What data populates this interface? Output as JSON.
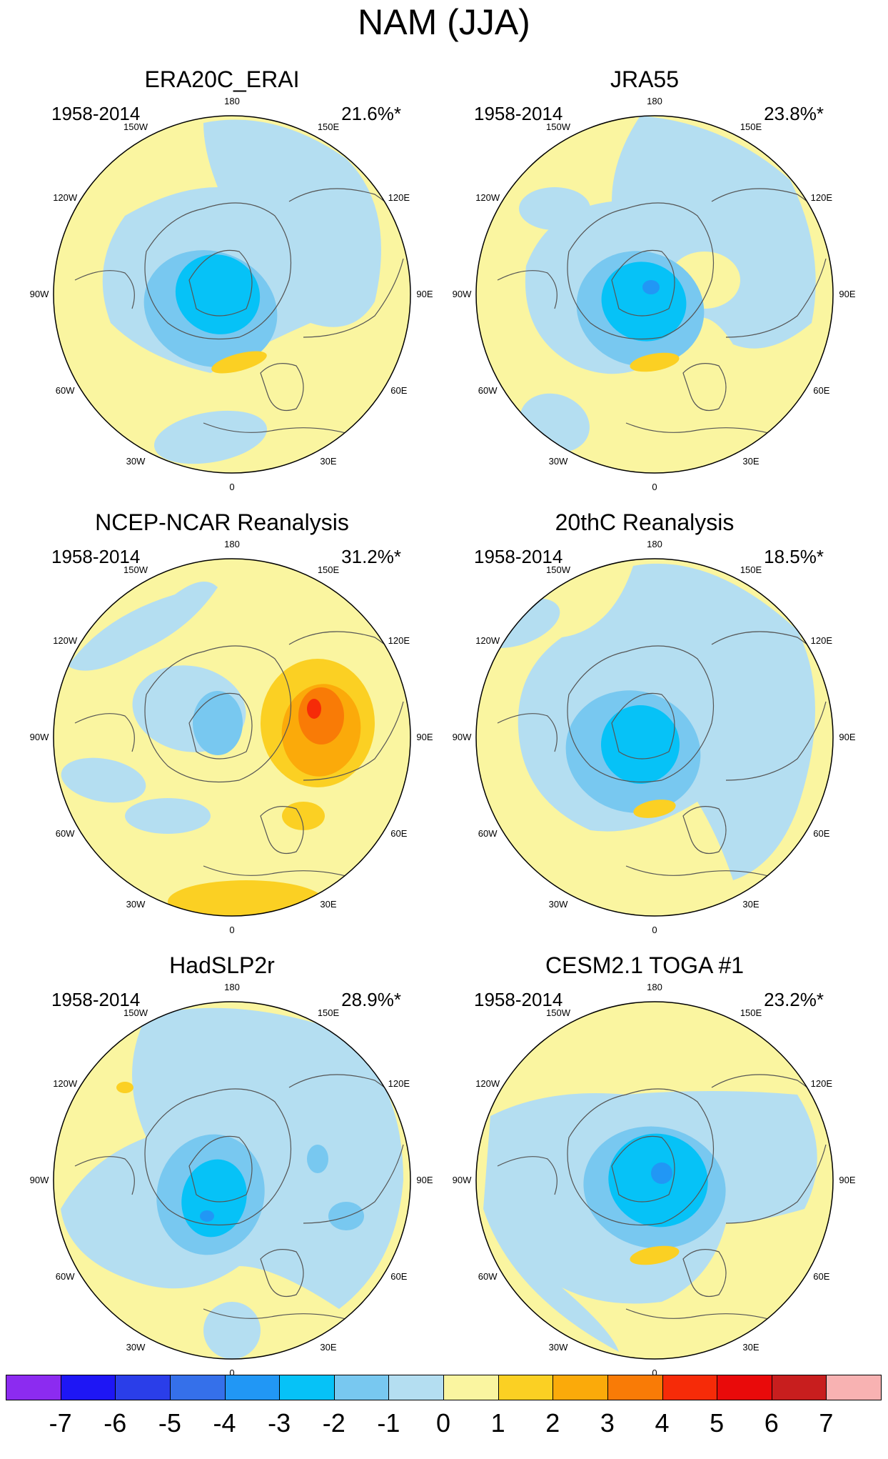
{
  "title": "NAM (JJA)",
  "longitude_labels": {
    "n180": "180",
    "w150": "150W",
    "e150": "150E",
    "w120": "120W",
    "e120": "120E",
    "w90": "90W",
    "e90": "90E",
    "w60": "60W",
    "e60": "60E",
    "w30": "30W",
    "e30": "30E",
    "zero": "0"
  },
  "panels": [
    {
      "title": "ERA20C_ERAI",
      "period": "1958-2014",
      "variance": "21.6%*"
    },
    {
      "title": "JRA55",
      "period": "1958-2014",
      "variance": "23.8%*"
    },
    {
      "title": "NCEP-NCAR Reanalysis",
      "period": "1958-2014",
      "variance": "31.2%*"
    },
    {
      "title": "20thC Reanalysis",
      "period": "1958-2014",
      "variance": "18.5%*"
    },
    {
      "title": "HadSLP2r",
      "period": "1958-2014",
      "variance": "28.9%*"
    },
    {
      "title": "CESM2.1 TOGA #1",
      "period": "1958-2014",
      "variance": "23.2%*"
    }
  ],
  "colorbar": {
    "labels": [
      "-7",
      "-6",
      "-5",
      "-4",
      "-3",
      "-2",
      "-1",
      "0",
      "1",
      "2",
      "3",
      "4",
      "5",
      "6",
      "7"
    ],
    "colors": [
      "#8c2bf0",
      "#1e16f5",
      "#2a3ee9",
      "#3570ea",
      "#2197f5",
      "#06c2f7",
      "#78c8f0",
      "#b4def1",
      "#faf5a0",
      "#fbd023",
      "#fbaa0a",
      "#f97b06",
      "#f62b08",
      "#e90a0a",
      "#c81e1e",
      "#f8b2b2"
    ]
  },
  "chart_data": {
    "type": "polar-stereographic contour maps",
    "variable": "NAM (JJA) regression pattern",
    "contour_levels": [
      -7,
      -6,
      -5,
      -4,
      -3,
      -2,
      -1,
      0,
      1,
      2,
      3,
      4,
      5,
      6,
      7
    ],
    "panels": [
      {
        "dataset": "ERA20C_ERAI",
        "period": "1958-2014",
        "variance_explained": "21.6%*",
        "min_approx": -3,
        "max_approx": 2
      },
      {
        "dataset": "JRA55",
        "period": "1958-2014",
        "variance_explained": "23.8%*",
        "min_approx": -4,
        "max_approx": 2
      },
      {
        "dataset": "NCEP-NCAR Reanalysis",
        "period": "1958-2014",
        "variance_explained": "31.2%*",
        "min_approx": -2,
        "max_approx": 5
      },
      {
        "dataset": "20thC Reanalysis",
        "period": "1958-2014",
        "variance_explained": "18.5%*",
        "min_approx": -3,
        "max_approx": 2
      },
      {
        "dataset": "HadSLP2r",
        "period": "1958-2014",
        "variance_explained": "28.9%*",
        "min_approx": -4,
        "max_approx": 2
      },
      {
        "dataset": "CESM2.1 TOGA #1",
        "period": "1958-2014",
        "variance_explained": "23.2%*",
        "min_approx": -4,
        "max_approx": 2
      }
    ]
  }
}
